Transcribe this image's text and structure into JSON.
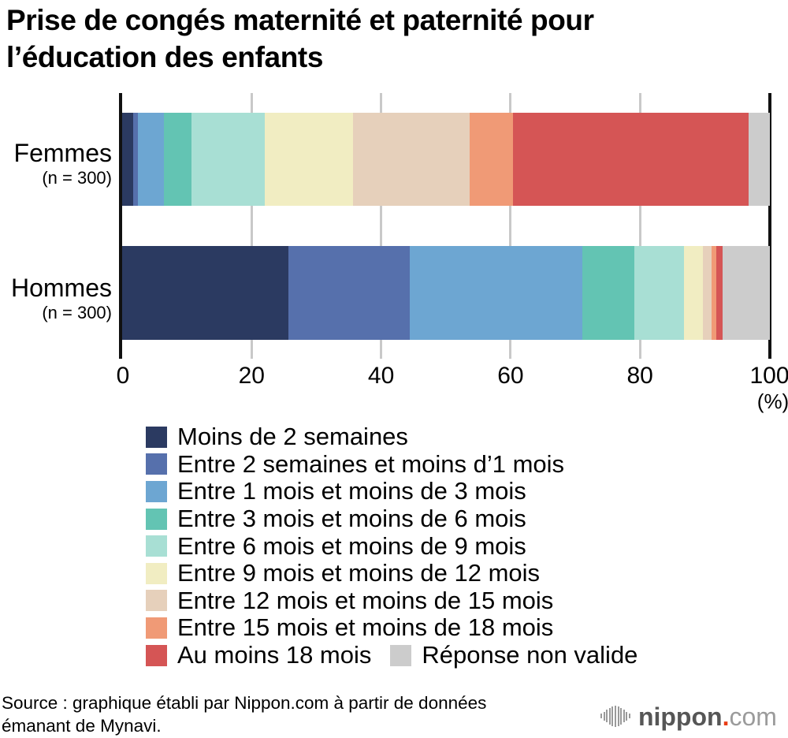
{
  "title": {
    "line1": "Prise de congés maternité et paternité pour",
    "line2": "l’éducation des enfants"
  },
  "chart_data": {
    "type": "bar",
    "stacked": true,
    "orientation": "horizontal",
    "unit_label": "(%)",
    "xlim": [
      0,
      100
    ],
    "xticks": [
      0,
      20,
      40,
      60,
      80,
      100
    ],
    "grid": true,
    "legend_position": "bottom",
    "categories": [
      {
        "label": "Moins de 2 semaines",
        "color": "#2b3a61"
      },
      {
        "label": "Entre 2 semaines et moins d’1 mois",
        "color": "#5670ac"
      },
      {
        "label": "Entre 1 mois et moins de 3 mois",
        "color": "#6da6d2"
      },
      {
        "label": "Entre 3 mois et moins de 6 mois",
        "color": "#63c4b3"
      },
      {
        "label": "Entre 6 mois et moins de 9 mois",
        "color": "#a8dfd4"
      },
      {
        "label": "Entre 9 mois et moins de 12 mois",
        "color": "#f1edc2"
      },
      {
        "label": "Entre 12 mois et moins de 15 mois",
        "color": "#e6d0bb"
      },
      {
        "label": "Entre 15 mois et moins de 18 mois",
        "color": "#f09a76"
      },
      {
        "label": "Au moins 18 mois",
        "color": "#d55555"
      },
      {
        "label": "Réponse non valide",
        "color": "#cccccc"
      }
    ],
    "rows": [
      {
        "group": "Femmes",
        "n_label": "(n = 300)",
        "values": [
          1.7,
          0.7,
          4.0,
          4.3,
          11.3,
          13.7,
          18.0,
          6.7,
          36.3,
          3.3
        ]
      },
      {
        "group": "Hommes",
        "n_label": "(n = 300)",
        "values": [
          25.7,
          18.7,
          26.7,
          8.0,
          7.7,
          3.0,
          1.3,
          0.7,
          1.0,
          7.3
        ]
      }
    ]
  },
  "source": {
    "line1": "Source : graphique établi par Nippon.com à partir de données",
    "line2": "émanant de Mynavi."
  },
  "logo": {
    "name": "nippon",
    "dot": ".",
    "tld": "com"
  }
}
